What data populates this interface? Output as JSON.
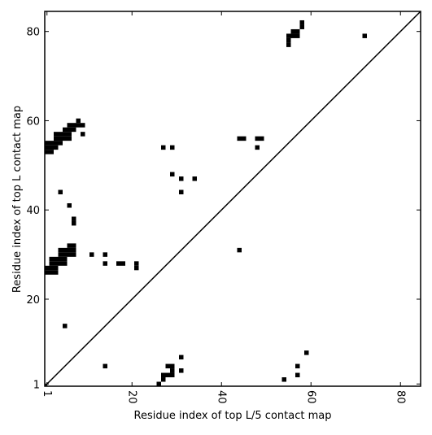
{
  "chart_data": {
    "type": "scatter",
    "xlabel": "Residue index of top L/5 contact map",
    "ylabel": "Residue index of top L contact map",
    "xlim": [
      0.5,
      84.5
    ],
    "ylim": [
      0.5,
      84.5
    ],
    "xticks": [
      1,
      20,
      40,
      60,
      80
    ],
    "yticks": [
      1,
      20,
      40,
      60,
      80
    ],
    "diagonal": true,
    "series": [
      {
        "color": "#000000",
        "x": [
          1,
          1,
          1,
          2,
          2,
          2,
          3,
          3,
          3,
          3,
          4,
          4,
          4,
          5,
          5,
          5,
          6,
          6,
          6,
          6,
          7,
          7,
          8,
          8,
          9,
          9,
          4,
          6,
          7,
          7,
          1,
          1,
          2,
          2,
          3,
          3,
          2,
          2,
          3,
          3,
          4,
          4,
          5,
          5,
          4,
          4,
          5,
          5,
          6,
          6,
          6,
          7,
          7,
          7,
          11,
          14,
          14,
          17,
          18,
          21,
          21,
          27,
          29,
          29,
          31,
          34,
          31,
          44,
          44,
          45,
          48,
          49,
          48,
          55,
          55,
          55,
          56,
          56,
          57,
          57,
          58,
          58,
          72
        ],
        "y": [
          53,
          54,
          55,
          53,
          54,
          55,
          54,
          55,
          56,
          57,
          55,
          56,
          57,
          56,
          57,
          58,
          56,
          57,
          58,
          59,
          58,
          59,
          60,
          59,
          59,
          57,
          44,
          41,
          38,
          37,
          26,
          27,
          26,
          27,
          26,
          27,
          28,
          29,
          28,
          29,
          28,
          29,
          28,
          29,
          30,
          31,
          30,
          31,
          30,
          31,
          32,
          30,
          31,
          32,
          30,
          30,
          28,
          28,
          28,
          28,
          27,
          54,
          54,
          48,
          47,
          47,
          44,
          31,
          56,
          56,
          56,
          56,
          54,
          77,
          78,
          79,
          79,
          80,
          79,
          80,
          81,
          82,
          79
        ]
      },
      {
        "color": "#000000",
        "x": [
          5,
          14,
          26,
          27,
          27,
          28,
          29,
          28,
          29,
          29,
          31,
          31,
          54,
          57,
          57,
          59
        ],
        "y": [
          14,
          5,
          1,
          2,
          3,
          3,
          3,
          5,
          5,
          4,
          7,
          4,
          2,
          5,
          3,
          8
        ]
      }
    ]
  }
}
